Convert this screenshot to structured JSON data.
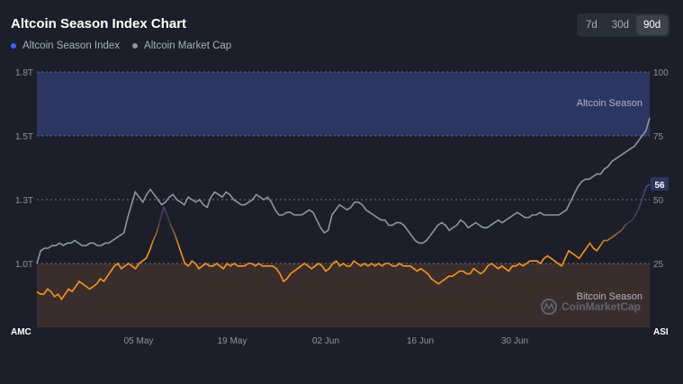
{
  "title": "Altcoin Season Index Chart",
  "legend": {
    "index_label": "Altcoin Season Index",
    "index_color": "#3861fb",
    "cap_label": "Altcoin Market Cap",
    "cap_color": "#8c93a3"
  },
  "ranges": [
    {
      "label": "7d",
      "active": false
    },
    {
      "label": "30d",
      "active": false
    },
    {
      "label": "90d",
      "active": true
    }
  ],
  "watermark": "CoinMarketCap",
  "chart_data": {
    "type": "line",
    "x_ticks": [
      "05 May",
      "19 May",
      "02 Jun",
      "16 Jun",
      "30 Jun"
    ],
    "left_axis": {
      "name": "AMC",
      "ticks": [
        "1.8T",
        "1.5T",
        "1.3T",
        "1.0T"
      ]
    },
    "right_axis": {
      "name": "ASI",
      "ticks": [
        "100",
        "75",
        "50",
        "25"
      ],
      "ylim": [
        0,
        100
      ]
    },
    "zones": [
      {
        "label": "Altcoin Season",
        "from": 75,
        "to": 100,
        "color": "#2d3563"
      },
      {
        "label": "Bitcoin Season",
        "from": 0,
        "to": 25,
        "color": "#3a2e2c"
      }
    ],
    "grid": true,
    "current_index": "56",
    "series": [
      {
        "name": "Altcoin Season Index",
        "axis": "right",
        "color_low": "#f7931a",
        "color_high": "#3861fb",
        "values": [
          14,
          13,
          13,
          15,
          14,
          12,
          13,
          11,
          13,
          15,
          14,
          16,
          18,
          17,
          16,
          15,
          16,
          17,
          19,
          18,
          20,
          22,
          24,
          25,
          23,
          24,
          25,
          24,
          23,
          25,
          26,
          27,
          30,
          34,
          37,
          42,
          47,
          44,
          40,
          37,
          33,
          29,
          25,
          24,
          26,
          25,
          23,
          24,
          25,
          24,
          24,
          25,
          24,
          23,
          25,
          24,
          25,
          24,
          24,
          24,
          25,
          25,
          24,
          25,
          24,
          24,
          24,
          24,
          23,
          21,
          18,
          19,
          21,
          22,
          23,
          24,
          25,
          24,
          23,
          24,
          25,
          24,
          22,
          23,
          25,
          26,
          24,
          25,
          24,
          24,
          26,
          25,
          24,
          25,
          24,
          25,
          24,
          25,
          24,
          25,
          25,
          24,
          24,
          25,
          24,
          24,
          24,
          23,
          22,
          23,
          22,
          21,
          19,
          18,
          17,
          18,
          19,
          20,
          20,
          21,
          22,
          22,
          21,
          21,
          23,
          22,
          21,
          22,
          24,
          25,
          24,
          23,
          24,
          23,
          22,
          24,
          24,
          25,
          24,
          25,
          26,
          26,
          26,
          25,
          27,
          28,
          27,
          26,
          25,
          24,
          27,
          30,
          29,
          28,
          27,
          29,
          31,
          33,
          31,
          30,
          32,
          34,
          34,
          35,
          36,
          37,
          38,
          40,
          41,
          42,
          44,
          47,
          51,
          55,
          56
        ]
      },
      {
        "name": "Altcoin Market Cap",
        "axis": "left",
        "color": "#8c93a3",
        "values": [
          25,
          30,
          31,
          31,
          32,
          32,
          33,
          32,
          33,
          33,
          34,
          33,
          32,
          32,
          33,
          33,
          32,
          32,
          33,
          33,
          34,
          35,
          36,
          37,
          43,
          48,
          53,
          51,
          49,
          52,
          54,
          52,
          50,
          48,
          49,
          51,
          52,
          50,
          49,
          48,
          51,
          50,
          49,
          50,
          48,
          47,
          51,
          53,
          52,
          51,
          53,
          52,
          50,
          49,
          48,
          48,
          49,
          50,
          52,
          51,
          50,
          51,
          49,
          46,
          44,
          44,
          45,
          45,
          44,
          44,
          44,
          45,
          46,
          45,
          42,
          39,
          37,
          38,
          44,
          46,
          48,
          47,
          46,
          47,
          49,
          49,
          48,
          46,
          45,
          44,
          43,
          42,
          42,
          40,
          40,
          41,
          41,
          40,
          38,
          36,
          34,
          33,
          33,
          34,
          36,
          38,
          40,
          41,
          40,
          38,
          39,
          40,
          42,
          41,
          39,
          40,
          41,
          40,
          39,
          39,
          40,
          41,
          42,
          41,
          42,
          43,
          44,
          45,
          44,
          43,
          43,
          44,
          44,
          45,
          44,
          44,
          44,
          44,
          44,
          45,
          46,
          49,
          52,
          55,
          57,
          58,
          58,
          59,
          60,
          60,
          62,
          63,
          65,
          66,
          67,
          68,
          69,
          70,
          71,
          73,
          75,
          77,
          82
        ]
      }
    ]
  }
}
